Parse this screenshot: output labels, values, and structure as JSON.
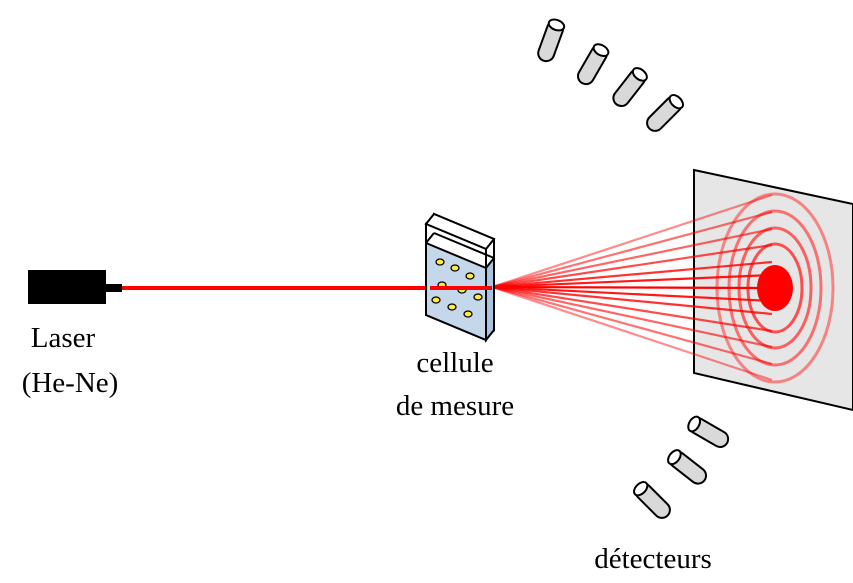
{
  "labels": {
    "laser_line1": "Laser",
    "laser_line2": "(He-Ne)",
    "cell_line1": "cellule",
    "cell_line2": "de mesure",
    "detectors": "détecteurs"
  },
  "colors": {
    "laser_body": "#000000",
    "beam": "#ff0000",
    "scatter_lines": "#ff6666",
    "screen_fill": "#e6e6e6",
    "cell_fill": "#c5d7ea",
    "particles": "#ffeb3b",
    "detector_fill": "#d9d9d9"
  },
  "icons": {
    "laser": "laser-icon",
    "cell": "measuring-cell-icon",
    "screen": "screen-icon",
    "detector": "detector-icon"
  }
}
